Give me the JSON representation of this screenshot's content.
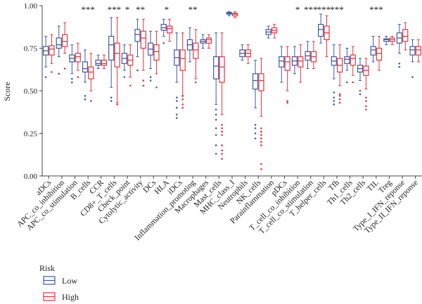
{
  "chart_data": {
    "type": "boxplot",
    "ylabel": "Score",
    "ylim": [
      0,
      1
    ],
    "yticks": [
      "0.00",
      "0.25",
      "0.50",
      "0.75",
      "1.00"
    ],
    "categories": [
      "aDCs",
      "APC_co_inhibition",
      "APC_co_stimulation",
      "B_cells",
      "CCR",
      "CD8+_T_cells",
      "Check_point",
      "Cytolytic_activity",
      "DCs",
      "HLA",
      "iDCs",
      "Inflammation_promoting",
      "Macrophages",
      "Mast_cells",
      "MHC_class_I",
      "Neutrophils",
      "NK_cells",
      "Parainflammation",
      "pDCs",
      "T_cell_co_inhibition",
      "T_cell_co_stimulation",
      "T_helper_cells",
      "Tfh",
      "Th1_cells",
      "Th2_cells",
      "TIL",
      "Treg",
      "Type_I_IFN_reponse",
      "Type_II_IFN_reponse"
    ],
    "significance": [
      "",
      "",
      "",
      "***",
      "",
      "***",
      "*",
      "**",
      "",
      "*",
      "",
      "**",
      "",
      "",
      "",
      "",
      "",
      "",
      "",
      "*",
      "***",
      "***",
      "***",
      "",
      "",
      "***",
      "",
      "",
      ""
    ],
    "legend": {
      "title": "Risk",
      "entries": [
        "Low",
        "High"
      ],
      "position": "bottom-left"
    },
    "series": [
      {
        "name": "Low",
        "color": "#3b5bab",
        "boxes": [
          [
            0.64,
            0.71,
            0.735,
            0.76,
            0.82
          ],
          [
            0.7,
            0.75,
            0.77,
            0.81,
            0.88
          ],
          [
            0.6,
            0.67,
            0.69,
            0.71,
            0.77
          ],
          [
            0.55,
            0.61,
            0.63,
            0.67,
            0.74
          ],
          [
            0.63,
            0.65,
            0.66,
            0.68,
            0.71
          ],
          [
            0.52,
            0.68,
            0.77,
            0.82,
            0.93
          ],
          [
            0.62,
            0.66,
            0.69,
            0.72,
            0.77
          ],
          [
            0.7,
            0.79,
            0.83,
            0.86,
            0.92
          ],
          [
            0.63,
            0.71,
            0.745,
            0.78,
            0.85
          ],
          [
            0.82,
            0.855,
            0.87,
            0.89,
            0.92
          ],
          [
            0.55,
            0.65,
            0.695,
            0.74,
            0.84
          ],
          [
            0.67,
            0.74,
            0.77,
            0.8,
            0.87
          ],
          [
            0.75,
            0.78,
            0.79,
            0.8,
            0.83
          ],
          [
            0.42,
            0.57,
            0.645,
            0.7,
            0.84
          ],
          [
            0.94,
            0.95,
            0.955,
            0.96,
            0.965
          ],
          [
            0.68,
            0.7,
            0.72,
            0.74,
            0.77
          ],
          [
            0.4,
            0.51,
            0.56,
            0.6,
            0.68
          ],
          [
            0.81,
            0.83,
            0.845,
            0.86,
            0.88
          ],
          [
            0.55,
            0.64,
            0.675,
            0.7,
            0.76
          ],
          [
            0.6,
            0.65,
            0.675,
            0.7,
            0.76
          ],
          [
            0.63,
            0.68,
            0.705,
            0.73,
            0.79
          ],
          [
            0.78,
            0.82,
            0.86,
            0.89,
            0.95
          ],
          [
            0.57,
            0.65,
            0.675,
            0.7,
            0.77
          ],
          [
            0.62,
            0.66,
            0.685,
            0.7,
            0.75
          ],
          [
            0.56,
            0.61,
            0.63,
            0.65,
            0.69
          ],
          [
            0.67,
            0.71,
            0.74,
            0.76,
            0.82
          ],
          [
            0.77,
            0.79,
            0.8,
            0.805,
            0.82
          ],
          [
            0.72,
            0.78,
            0.81,
            0.84,
            0.89
          ],
          [
            0.67,
            0.71,
            0.74,
            0.76,
            0.8
          ]
        ],
        "outliers": [
          [
            0.58
          ],
          [
            0.6
          ],
          [
            0.55,
            0.57
          ],
          [
            0.45,
            0.47
          ],
          [],
          [
            0.44,
            0.46
          ],
          [
            0.58
          ],
          [
            0.62
          ],
          [
            0.56,
            0.58
          ],
          [
            0.78
          ],
          [
            0.34,
            0.36,
            0.4,
            0.44,
            0.46
          ],
          [],
          [],
          [
            0.13,
            0.18,
            0.24,
            0.28,
            0.33,
            0.36,
            0.39
          ],
          [],
          [],
          [
            0.22,
            0.25,
            0.28,
            0.3
          ],
          [],
          [],
          [],
          [],
          [],
          [
            0.42,
            0.44,
            0.46,
            0.49
          ],
          [
            0.55
          ],
          [
            0.48,
            0.5
          ],
          [],
          [],
          [
            0.64,
            0.66
          ],
          [
            0.58
          ]
        ]
      },
      {
        "name": "High",
        "color": "#e8333a",
        "boxes": [
          [
            0.66,
            0.71,
            0.745,
            0.765,
            0.83
          ],
          [
            0.72,
            0.76,
            0.79,
            0.83,
            0.9
          ],
          [
            0.62,
            0.67,
            0.7,
            0.72,
            0.78
          ],
          [
            0.5,
            0.57,
            0.61,
            0.64,
            0.72
          ],
          [
            0.63,
            0.65,
            0.66,
            0.68,
            0.71
          ],
          [
            0.43,
            0.64,
            0.72,
            0.78,
            0.93
          ],
          [
            0.58,
            0.65,
            0.68,
            0.71,
            0.77
          ],
          [
            0.62,
            0.75,
            0.81,
            0.85,
            0.92
          ],
          [
            0.6,
            0.68,
            0.73,
            0.77,
            0.85
          ],
          [
            0.79,
            0.84,
            0.865,
            0.88,
            0.92
          ],
          [
            0.47,
            0.62,
            0.69,
            0.74,
            0.84
          ],
          [
            0.57,
            0.69,
            0.74,
            0.78,
            0.86
          ],
          [
            0.75,
            0.78,
            0.8,
            0.81,
            0.83
          ],
          [
            0.36,
            0.55,
            0.64,
            0.7,
            0.84
          ],
          [
            0.93,
            0.94,
            0.95,
            0.955,
            0.965
          ],
          [
            0.66,
            0.7,
            0.72,
            0.74,
            0.77
          ],
          [
            0.35,
            0.5,
            0.56,
            0.6,
            0.69
          ],
          [
            0.81,
            0.84,
            0.855,
            0.87,
            0.89
          ],
          [
            0.5,
            0.62,
            0.67,
            0.7,
            0.76
          ],
          [
            0.55,
            0.64,
            0.675,
            0.7,
            0.77
          ],
          [
            0.63,
            0.67,
            0.7,
            0.73,
            0.79
          ],
          [
            0.7,
            0.8,
            0.84,
            0.88,
            0.94
          ],
          [
            0.53,
            0.61,
            0.65,
            0.69,
            0.77
          ],
          [
            0.59,
            0.65,
            0.69,
            0.71,
            0.76
          ],
          [
            0.51,
            0.59,
            0.62,
            0.645,
            0.69
          ],
          [
            0.62,
            0.68,
            0.72,
            0.75,
            0.82
          ],
          [
            0.77,
            0.79,
            0.8,
            0.81,
            0.82
          ],
          [
            0.74,
            0.79,
            0.82,
            0.86,
            0.9
          ],
          [
            0.67,
            0.71,
            0.74,
            0.76,
            0.8
          ]
        ],
        "outliers": [
          [
            0.61
          ],
          [
            0.63
          ],
          [
            0.58
          ],
          [
            0.44
          ],
          [],
          [
            0.42
          ],
          [
            0.53
          ],
          [
            0.53,
            0.56
          ],
          [
            0.52
          ],
          [],
          [
            0.4,
            0.42,
            0.45,
            0.47
          ],
          [
            0.55
          ],
          [],
          [
            0.1,
            0.13,
            0.15,
            0.18,
            0.24,
            0.26,
            0.28,
            0.3
          ],
          [],
          [],
          [
            0.04,
            0.07,
            0.18,
            0.2,
            0.22,
            0.24,
            0.26,
            0.28
          ],
          [],
          [
            0.43,
            0.44
          ],
          [],
          [],
          [],
          [
            0.43,
            0.45,
            0.47,
            0.48
          ],
          [
            0.55
          ],
          [
            0.39,
            0.41,
            0.44,
            0.46
          ],
          [],
          [],
          [],
          []
        ]
      }
    ]
  }
}
